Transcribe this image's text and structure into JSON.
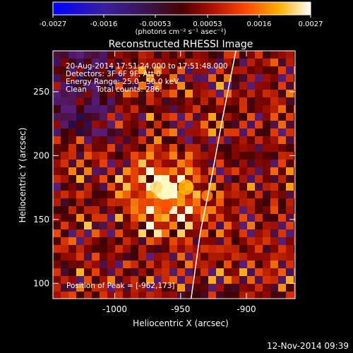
{
  "colorbar": {
    "ticks": [
      "-0.0027",
      "-0.0016",
      "-0.00053",
      "0.00053",
      "0.0016",
      "0.0027"
    ],
    "unit_label": "(photons cm⁻² s⁻¹ asec⁻²)"
  },
  "chart_data": {
    "type": "heatmap",
    "title": "Reconstructed RHESSI Image",
    "xlabel": "Heliocentric X (arcsec)",
    "ylabel": "Heliocentric Y (arcsec)",
    "xlim": [
      -1047,
      -863
    ],
    "ylim": [
      88,
      282
    ],
    "x_ticks": [
      {
        "value": -1000,
        "label": "-1000"
      },
      {
        "value": -950,
        "label": "-950"
      },
      {
        "value": -900,
        "label": "-900"
      }
    ],
    "y_ticks": [
      {
        "value": 100,
        "label": "100"
      },
      {
        "value": 150,
        "label": "150"
      },
      {
        "value": 200,
        "label": "200"
      },
      {
        "value": 250,
        "label": "250"
      }
    ],
    "color_range": [
      -0.0027,
      0.0027
    ],
    "colormap": "red-temperature",
    "peak": {
      "x": -962,
      "y": 173
    },
    "limb_curve": [
      {
        "x": -942,
        "y": 88
      },
      {
        "x": -935,
        "y": 140
      },
      {
        "x": -927,
        "y": 180
      },
      {
        "x": -918,
        "y": 230
      },
      {
        "x": -908,
        "y": 282
      }
    ],
    "annotations": [
      "20-Aug-2014 17:51:24.000 to 17:51:48.000",
      "Detectors: 3F 6F 9F, Att 0",
      "Energy Range: 25.0 - 50.0 keV",
      "Clean    Total counts: 286."
    ],
    "peak_label": "Position of Peak = [-962,173]"
  },
  "footer": {
    "timestamp": "12-Nov-2014 09:39"
  }
}
